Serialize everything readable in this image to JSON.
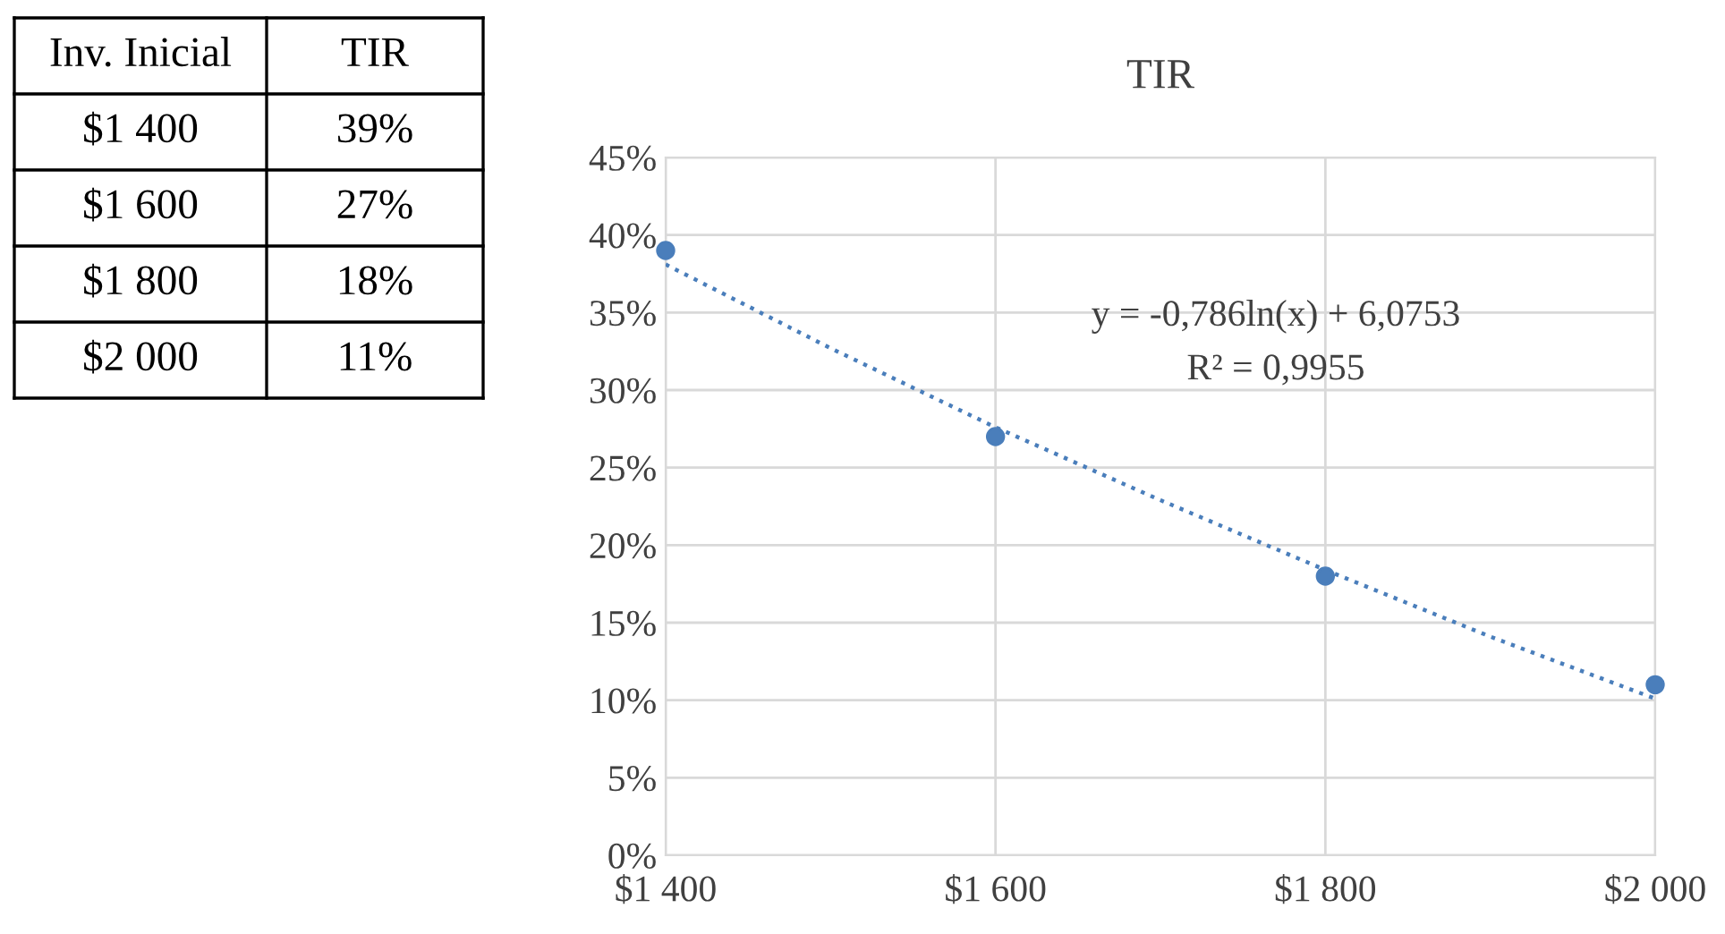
{
  "chart_data": {
    "type": "scatter",
    "title": "TIR",
    "x": [
      1400,
      1600,
      1800,
      2000
    ],
    "series": [
      {
        "color": "#4a7ebb",
        "values": [
          39,
          27,
          18,
          11
        ],
        "marker": "circle"
      },
      {
        "type": "line",
        "color": "#4a7ebb",
        "x": [
          1400,
          1500,
          1600,
          1700,
          1800,
          1900,
          2000
        ],
        "values": [
          38.1,
          32.7,
          27.6,
          22.9,
          18.4,
          14.1,
          10.1
        ],
        "line_style": "dotted",
        "marker": "none"
      }
    ],
    "xlim": [
      1400,
      2000
    ],
    "xticks": [
      {
        "value": 1400,
        "label": "$1 400"
      },
      {
        "value": 1600,
        "label": "$1 600"
      },
      {
        "value": 1800,
        "label": "$1 800"
      },
      {
        "value": 2000,
        "label": "$2 000"
      }
    ],
    "ylim": [
      0,
      45
    ],
    "yticks": [
      {
        "value": 0,
        "label": "0%"
      },
      {
        "value": 5,
        "label": "5%"
      },
      {
        "value": 10,
        "label": "10%"
      },
      {
        "value": 15,
        "label": "15%"
      },
      {
        "value": 20,
        "label": "20%"
      },
      {
        "value": 25,
        "label": "25%"
      },
      {
        "value": 30,
        "label": "30%"
      },
      {
        "value": 35,
        "label": "35%"
      },
      {
        "value": 40,
        "label": "40%"
      },
      {
        "value": 45,
        "label": "45%"
      }
    ],
    "grid": true,
    "annotations": [
      "Inv. Inicial",
      "TIR",
      "$1 400",
      "39%",
      "$1 600",
      "27%",
      "$1 800",
      "18%",
      "$2 000",
      "11%",
      "y = -0,786ln(x) + 6,0753",
      "R² = 0,9955"
    ]
  }
}
